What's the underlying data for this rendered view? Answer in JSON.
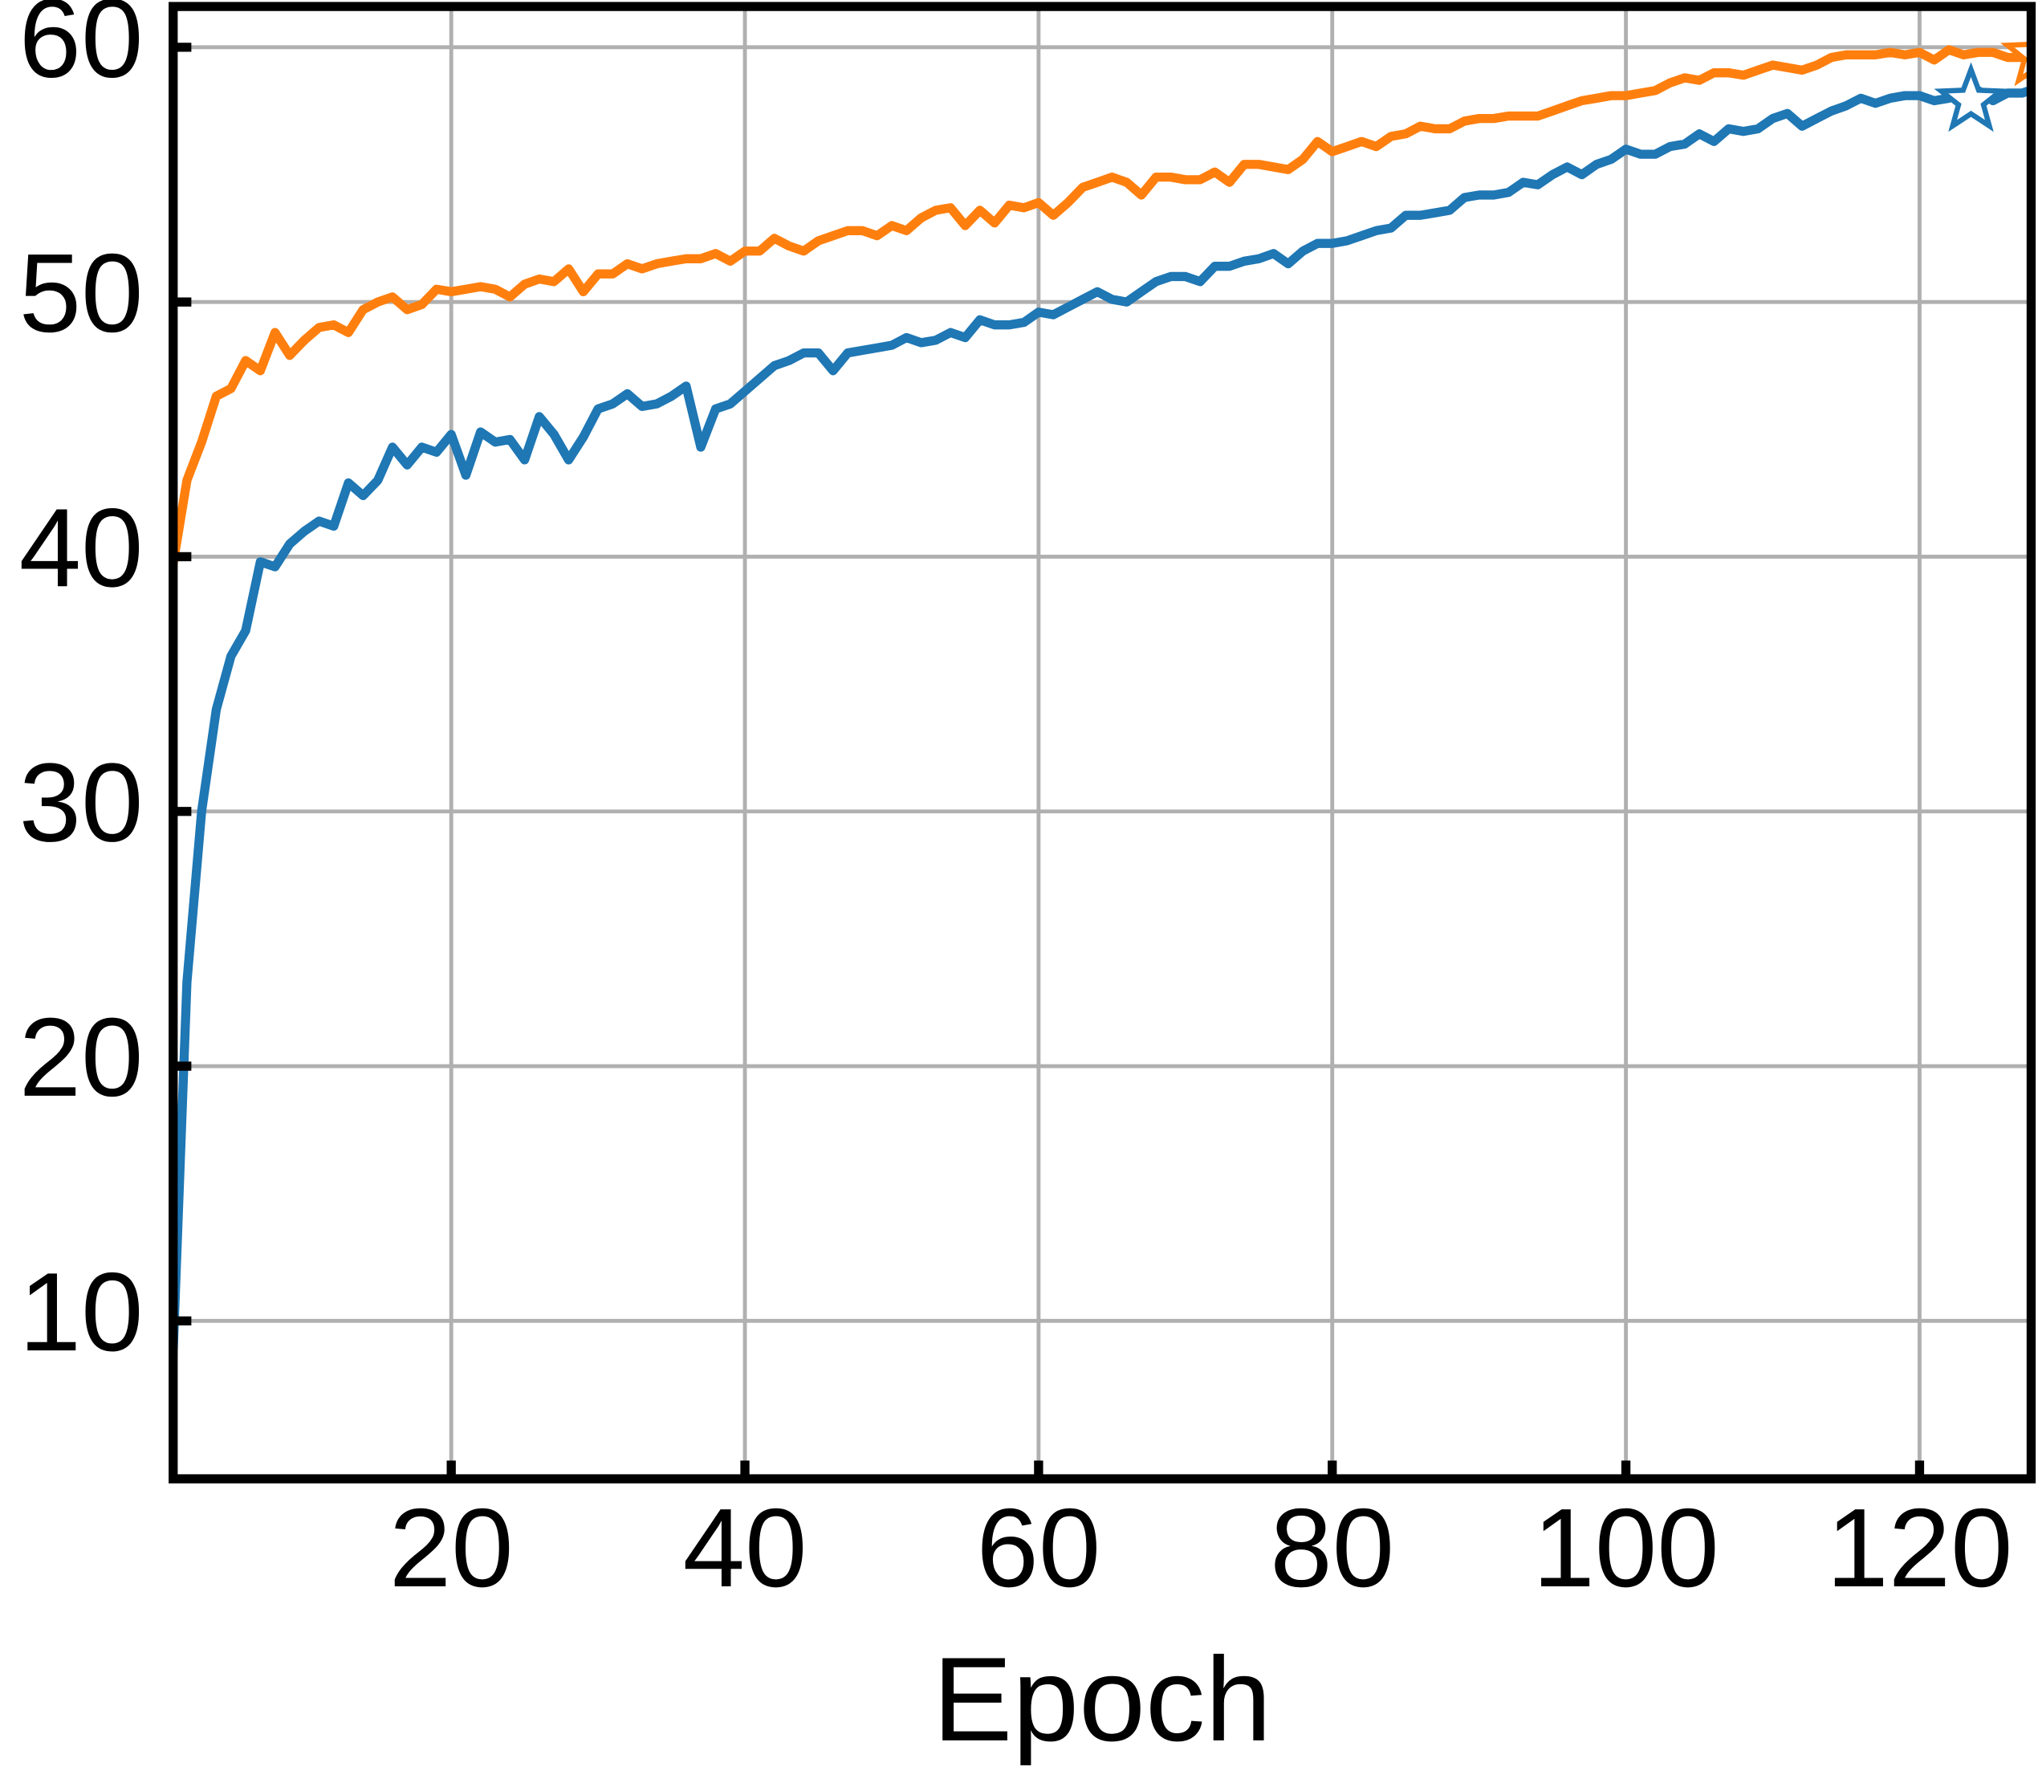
{
  "chart_data": {
    "type": "line",
    "x_label": "Epoch",
    "x": [
      1,
      2,
      3,
      4,
      5,
      6,
      7,
      8,
      9,
      10,
      11,
      12,
      13,
      14,
      15,
      16,
      17,
      18,
      19,
      20,
      21,
      22,
      23,
      24,
      25,
      26,
      27,
      28,
      29,
      30,
      31,
      32,
      33,
      34,
      35,
      36,
      37,
      38,
      39,
      40,
      41,
      42,
      43,
      44,
      45,
      46,
      47,
      48,
      49,
      50,
      51,
      52,
      53,
      54,
      55,
      56,
      57,
      58,
      59,
      60,
      61,
      62,
      63,
      64,
      65,
      66,
      67,
      68,
      69,
      70,
      71,
      72,
      73,
      74,
      75,
      76,
      77,
      78,
      79,
      80,
      81,
      82,
      83,
      84,
      85,
      86,
      87,
      88,
      89,
      90,
      91,
      92,
      93,
      94,
      95,
      96,
      97,
      98,
      99,
      100,
      101,
      102,
      103,
      104,
      105,
      106,
      107,
      108,
      109,
      110,
      111,
      112,
      113,
      114,
      115,
      116,
      117,
      118,
      119,
      120,
      121,
      122,
      123,
      124,
      125,
      126,
      127,
      128
    ],
    "series": [
      {
        "color": "#1f77b4",
        "values": [
          7.8,
          23.3,
          30,
          34,
          36.1,
          37.1,
          39.8,
          39.6,
          40.5,
          41,
          41.4,
          41.2,
          42.9,
          42.4,
          43,
          44.3,
          43.6,
          44.3,
          44.1,
          44.8,
          43.2,
          44.9,
          44.5,
          44.6,
          43.8,
          45.5,
          44.8,
          43.8,
          44.7,
          45.8,
          46,
          46.4,
          45.9,
          46,
          46.3,
          46.7,
          44.3,
          45.8,
          46,
          46.5,
          47,
          47.5,
          47.7,
          48,
          48,
          47.3,
          48,
          48.1,
          48.2,
          48.3,
          48.6,
          48.4,
          48.5,
          48.8,
          48.6,
          49.3,
          49.1,
          49.1,
          49.2,
          49.6,
          49.5,
          49.8,
          50.1,
          50.4,
          50.1,
          50,
          50.4,
          50.8,
          51,
          51,
          50.8,
          51.4,
          51.4,
          51.6,
          51.7,
          51.9,
          51.5,
          52,
          52.3,
          52.3,
          52.4,
          52.6,
          52.8,
          52.9,
          53.4,
          53.4,
          53.5,
          53.6,
          54.1,
          54.2,
          54.2,
          54.3,
          54.7,
          54.6,
          55,
          55.3,
          55,
          55.4,
          55.6,
          56,
          55.8,
          55.8,
          56.1,
          56.2,
          56.6,
          56.3,
          56.8,
          56.7,
          56.8,
          57.2,
          57.4,
          56.9,
          57.2,
          57.5,
          57.7,
          58,
          57.8,
          58,
          58.1,
          58.1,
          57.9,
          58,
          58.2,
          58.3,
          57.9,
          58.2,
          58.2,
          58.4
        ],
        "best": {
          "x": 123.5,
          "y": 57.9
        }
      },
      {
        "color": "#ff7f0e",
        "values": [
          39.5,
          43,
          44.5,
          46.3,
          46.6,
          47.7,
          47.3,
          48.8,
          47.9,
          48.5,
          49,
          49.1,
          48.8,
          49.7,
          50,
          50.2,
          49.7,
          49.9,
          50.5,
          50.4,
          50.5,
          50.6,
          50.5,
          50.2,
          50.7,
          50.9,
          50.8,
          51.3,
          50.4,
          51.1,
          51.1,
          51.5,
          51.3,
          51.5,
          51.6,
          51.7,
          51.7,
          51.9,
          51.6,
          52,
          52,
          52.5,
          52.2,
          52,
          52.4,
          52.6,
          52.8,
          52.8,
          52.6,
          53,
          52.8,
          53.3,
          53.6,
          53.7,
          53,
          53.6,
          53.1,
          53.8,
          53.7,
          53.9,
          53.4,
          53.9,
          54.5,
          54.7,
          54.9,
          54.7,
          54.2,
          54.9,
          54.9,
          54.8,
          54.8,
          55.1,
          54.7,
          55.4,
          55.4,
          55.3,
          55.2,
          55.6,
          56.3,
          55.9,
          56.1,
          56.3,
          56.1,
          56.5,
          56.6,
          56.9,
          56.8,
          56.8,
          57.1,
          57.2,
          57.2,
          57.3,
          57.3,
          57.3,
          57.5,
          57.7,
          57.9,
          58,
          58.1,
          58.1,
          58.2,
          58.3,
          58.6,
          58.8,
          58.7,
          59,
          59,
          58.9,
          59.1,
          59.3,
          59.2,
          59.1,
          59.3,
          59.6,
          59.7,
          59.7,
          59.7,
          59.8,
          59.7,
          59.8,
          59.5,
          59.9,
          59.7,
          59.8,
          59.8,
          59.6,
          59.6,
          60.5
        ],
        "best": {
          "x": 128,
          "y": 59.7
        }
      }
    ],
    "xlim": [
      1.06,
      127.6
    ],
    "ylim": [
      3.8,
      61.6
    ],
    "xticks": [
      20,
      40,
      60,
      80,
      100,
      120
    ],
    "yticks": [
      10,
      20,
      30,
      40,
      50,
      60
    ],
    "grid": true
  }
}
